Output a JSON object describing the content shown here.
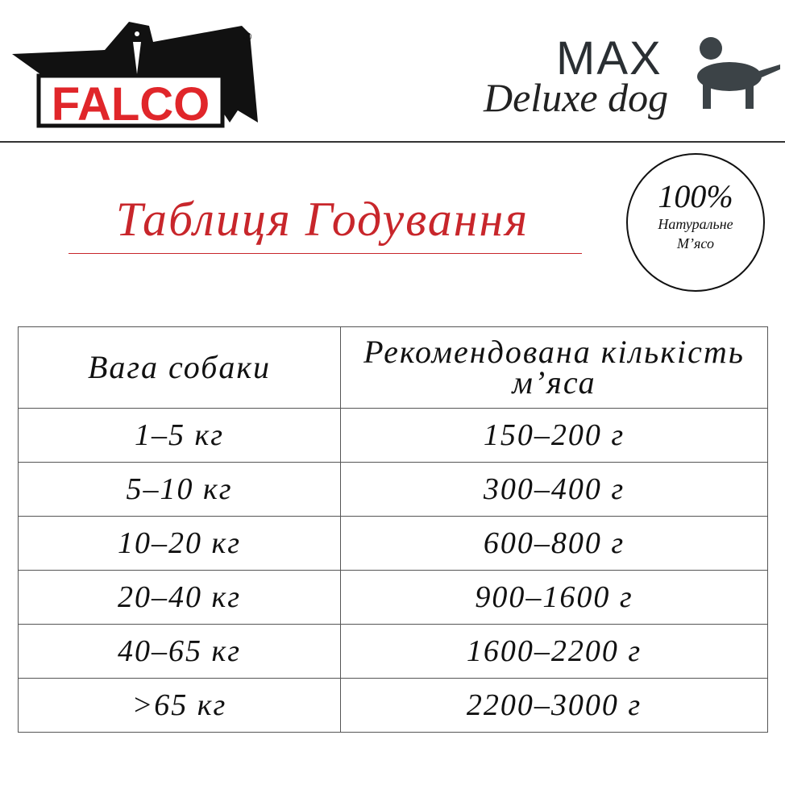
{
  "logos": {
    "left": {
      "text": "FALCO",
      "mark": "®",
      "colors": {
        "text": "#e0262a",
        "bird": "#111111"
      }
    },
    "right": {
      "brand": "MAX",
      "tagline": "Deluxe dog",
      "icon": "dog-silhouette-icon",
      "color": "#3c4347"
    }
  },
  "title": "Таблиця Годування",
  "badge": {
    "percent": "100%",
    "line1": "Натуральне",
    "line2": "М’ясо"
  },
  "table": {
    "headers": [
      "Вага собаки",
      "Рекомендована кількість м’яса"
    ],
    "rows": [
      [
        "1–5 кг",
        "150–200 г"
      ],
      [
        "5–10 кг",
        "300–400 г"
      ],
      [
        "10–20 кг",
        "600–800 г"
      ],
      [
        "20–40 кг",
        "900–1600 г"
      ],
      [
        "40–65 кг",
        "1600–2200 г"
      ],
      [
        ">65 кг",
        "2200–3000 г"
      ]
    ]
  },
  "colors": {
    "accent": "#c8262b"
  }
}
